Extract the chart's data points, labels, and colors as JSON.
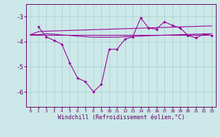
{
  "background_color": "#cce8e8",
  "grid_color": "#aacccc",
  "line_color": "#990099",
  "xlabel": "Windchill (Refroidissement éolien,°C)",
  "xlim": [
    -0.5,
    23.5
  ],
  "ylim": [
    -6.6,
    -2.5
  ],
  "yticks": [
    -6,
    -5,
    -4,
    -3
  ],
  "series": [
    [
      null,
      -3.4,
      -3.8,
      -3.95,
      -4.1,
      -4.85,
      -5.45,
      -5.6,
      -6.0,
      -5.7,
      -4.3,
      -4.3,
      -3.9,
      -3.8,
      -3.05,
      -3.45,
      -3.5,
      -3.2,
      -3.35,
      -3.45,
      -3.75,
      -3.85,
      -3.7,
      -3.75
    ],
    [
      -3.72,
      -3.72,
      -3.68,
      -3.7,
      -3.73,
      -3.75,
      -3.78,
      -3.8,
      -3.82,
      -3.82,
      -3.82,
      -3.82,
      -3.8,
      -3.79,
      -3.78,
      -3.76,
      -3.75,
      -3.74,
      -3.73,
      -3.72,
      -3.71,
      -3.7,
      -3.69,
      -3.68
    ],
    [
      -3.72,
      -3.6,
      -3.58,
      -3.57,
      -3.56,
      -3.55,
      -3.54,
      -3.53,
      -3.52,
      -3.51,
      -3.5,
      -3.49,
      -3.48,
      -3.47,
      -3.46,
      -3.45,
      -3.44,
      -3.43,
      -3.42,
      -3.41,
      -3.4,
      -3.39,
      -3.38,
      -3.37
    ],
    [
      -3.72,
      -3.72,
      -3.72,
      -3.72,
      -3.72,
      -3.72,
      -3.72,
      -3.72,
      -3.72,
      -3.72,
      -3.72,
      -3.72,
      -3.72,
      -3.72,
      -3.72,
      -3.72,
      -3.72,
      -3.72,
      -3.72,
      -3.72,
      -3.72,
      -3.72,
      -3.72,
      -3.72
    ]
  ]
}
